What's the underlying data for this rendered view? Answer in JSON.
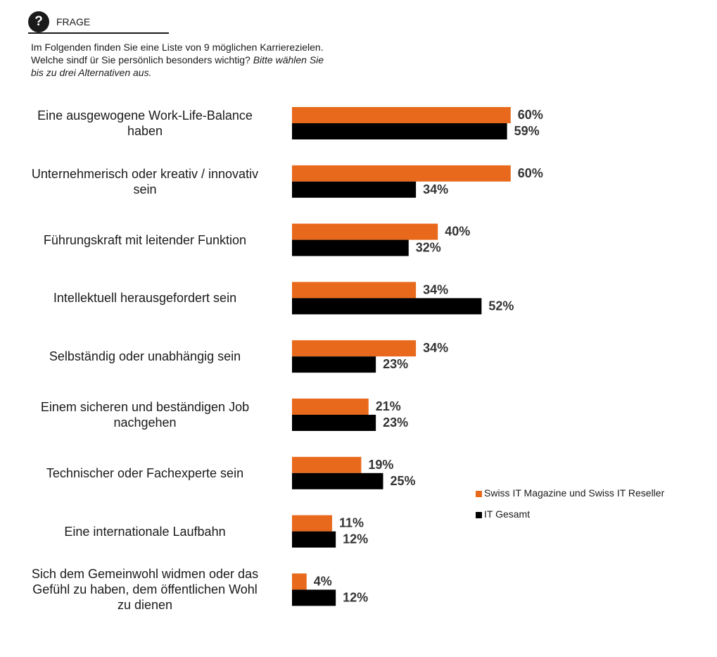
{
  "header": {
    "label": "FRAGE",
    "icon": "question-icon"
  },
  "question": {
    "line1": "Im Folgenden finden Sie eine Liste von 9 möglichen Karrierezielen.",
    "line2": "Welche sindf ür Sie persönlich besonders wichtig?",
    "line2_italic": "Bitte wählen Sie",
    "line3_italic": "bis zu drei Alternativen aus."
  },
  "chart_data": {
    "type": "bar",
    "orientation": "horizontal",
    "categories": [
      "Eine ausgewogene Work-Life-Balance haben",
      "Unternehmerisch oder kreativ / innovativ sein",
      "Führungskraft mit leitender Funktion",
      "Intellektuell herausgefordert sein",
      "Selbständig oder unabhängig sein",
      "Einem sicheren und beständigen Job nachgehen",
      "Technischer oder Fachexperte sein",
      "Eine internationale Laufbahn",
      "Sich dem Gemeinwohl widmen oder das Gefühl zu haben, dem öffentlichen Wohl zu dienen"
    ],
    "category_lines": [
      [
        "Eine ausgewogene Work-Life-Balance",
        "haben"
      ],
      [
        "Unternehmerisch oder kreativ / innovativ",
        "sein"
      ],
      [
        "Führungskraft mit leitender Funktion"
      ],
      [
        "Intellektuell herausgefordert sein"
      ],
      [
        "Selbständig oder unabhängig sein"
      ],
      [
        "Einem sicheren und beständigen Job",
        "nachgehen"
      ],
      [
        "Technischer oder Fachexperte sein"
      ],
      [
        "Eine internationale Laufbahn"
      ],
      [
        "Sich dem Gemeinwohl widmen oder das",
        "Gefühl zu haben, dem öffentlichen Wohl",
        "zu dienen"
      ]
    ],
    "series": [
      {
        "name": "Swiss IT Magazine und Swiss IT Reseller",
        "color": "#e8691c",
        "values": [
          60,
          60,
          40,
          34,
          34,
          21,
          19,
          11,
          4
        ],
        "labels": [
          "60%",
          "60%",
          "40%",
          "34%",
          "34%",
          "21%",
          "19%",
          "11%",
          "4%"
        ]
      },
      {
        "name": "IT Gesamt",
        "color": "#000000",
        "values": [
          59,
          34,
          32,
          52,
          23,
          23,
          25,
          12,
          12
        ],
        "labels": [
          "59%",
          "34%",
          "32%",
          "52%",
          "23%",
          "23%",
          "25%",
          "12%",
          "12%"
        ]
      }
    ],
    "xlim": [
      0,
      100
    ],
    "grid": false,
    "legend_position": "right"
  }
}
